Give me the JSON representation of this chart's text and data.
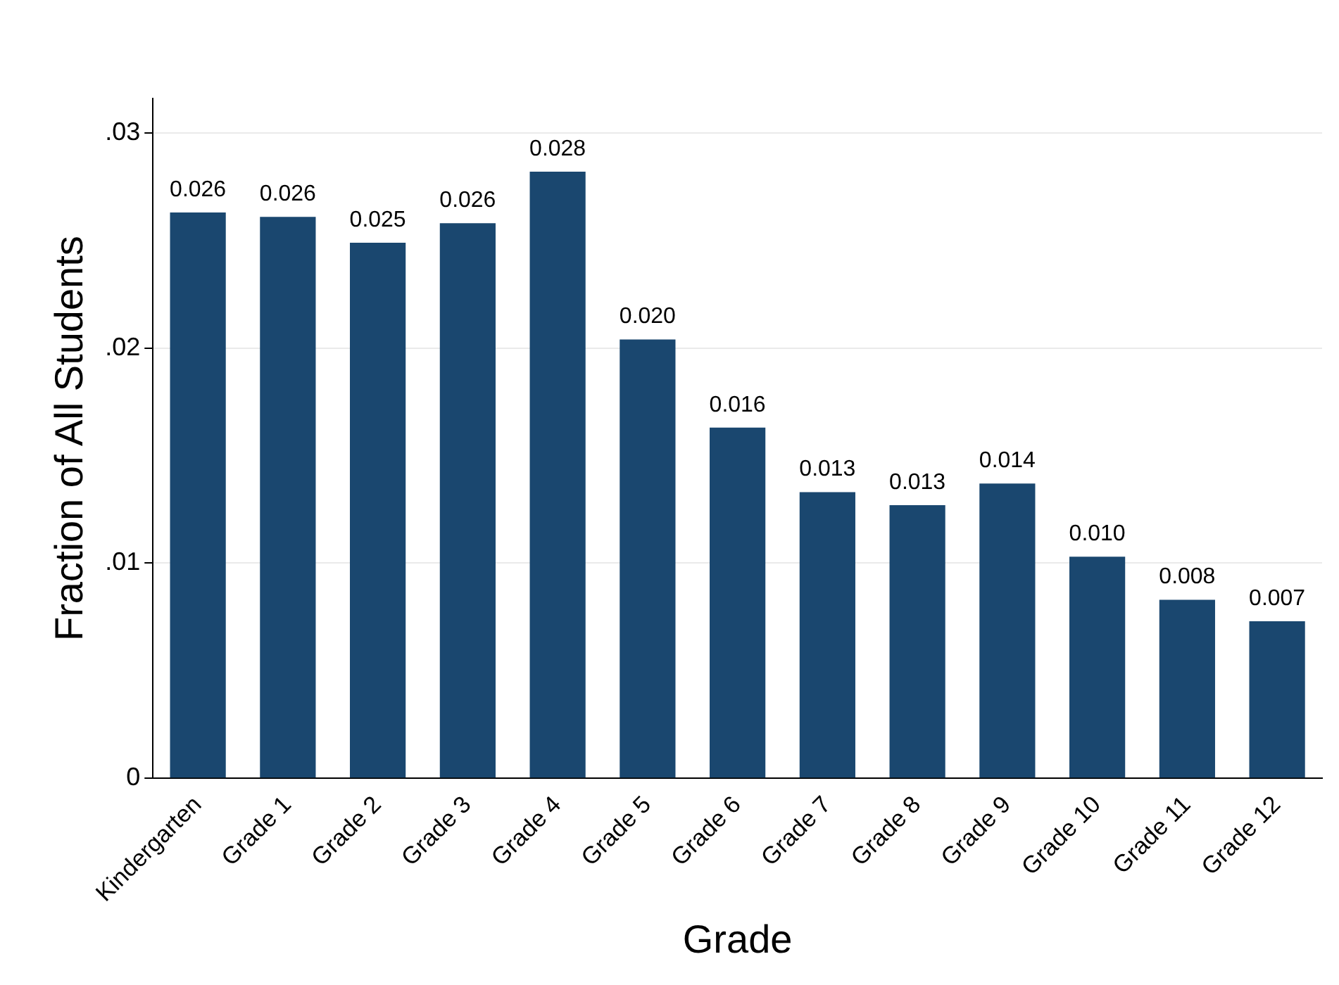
{
  "chart_data": {
    "type": "bar",
    "xlabel": "Grade",
    "ylabel": "Fraction of All Students",
    "categories": [
      "Kindergarten",
      "Grade 1",
      "Grade 2",
      "Grade 3",
      "Grade 4",
      "Grade 5",
      "Grade 6",
      "Grade 7",
      "Grade 8",
      "Grade 9",
      "Grade 10",
      "Grade 11",
      "Grade 12"
    ],
    "values": [
      0.0263,
      0.0261,
      0.0249,
      0.0258,
      0.0282,
      0.0204,
      0.0163,
      0.0133,
      0.0127,
      0.0137,
      0.0103,
      0.0083,
      0.0073
    ],
    "value_labels": [
      "0.026",
      "0.026",
      "0.025",
      "0.026",
      "0.028",
      "0.020",
      "0.016",
      "0.013",
      "0.013",
      "0.014",
      "0.010",
      "0.008",
      "0.007"
    ],
    "color": "#1a476f",
    "ylim": [
      0,
      0.0316
    ],
    "yticks": [
      {
        "value": 0,
        "label": "0"
      },
      {
        "value": 0.01,
        "label": ".01"
      },
      {
        "value": 0.02,
        "label": ".02"
      },
      {
        "value": 0.03,
        "label": ".03"
      }
    ],
    "grid": "y",
    "legend": false
  }
}
